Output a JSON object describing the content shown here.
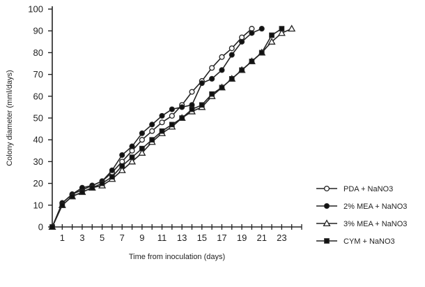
{
  "chart_data": {
    "type": "line",
    "xlabel": "Time from inoculation (days)",
    "ylabel": "Colony diameter (mml/days)",
    "xlim": [
      0,
      25
    ],
    "ylim": [
      0,
      100
    ],
    "x_ticks": [
      1,
      3,
      5,
      7,
      9,
      11,
      13,
      15,
      17,
      19,
      21,
      23
    ],
    "y_ticks": [
      0,
      10,
      20,
      30,
      40,
      50,
      60,
      70,
      80,
      90,
      100
    ],
    "grid": false,
    "legend_position": "right",
    "series": [
      {
        "name": "PDA + NaNO3",
        "marker": "open-circle",
        "x": [
          0,
          1,
          2,
          3,
          4,
          5,
          6,
          7,
          8,
          9,
          10,
          11,
          12,
          13,
          14,
          15,
          16,
          17,
          18,
          19,
          20
        ],
        "y": [
          0,
          11,
          15,
          17,
          19,
          21,
          25,
          30,
          35,
          40,
          44,
          48,
          51,
          56,
          62,
          67,
          73,
          78,
          82,
          87,
          91
        ]
      },
      {
        "name": "2% MEA + NaNO3",
        "marker": "filled-circle",
        "x": [
          0,
          1,
          2,
          3,
          4,
          5,
          6,
          7,
          8,
          9,
          10,
          11,
          12,
          13,
          14,
          15,
          16,
          17,
          18,
          19,
          20,
          21
        ],
        "y": [
          0,
          11,
          15,
          18,
          19,
          21,
          26,
          33,
          37,
          43,
          47,
          51,
          54,
          55,
          56,
          66,
          68,
          72,
          79,
          85,
          89,
          91
        ]
      },
      {
        "name": "3% MEA + NaNO3",
        "marker": "open-triangle",
        "x": [
          0,
          1,
          2,
          3,
          4,
          5,
          6,
          7,
          8,
          9,
          10,
          11,
          12,
          13,
          14,
          15,
          16,
          17,
          18,
          19,
          20,
          21,
          22,
          23,
          24
        ],
        "y": [
          0,
          10,
          14,
          16,
          18,
          19,
          22,
          26,
          30,
          34,
          39,
          43,
          46,
          50,
          53,
          55,
          60,
          64,
          68,
          72,
          76,
          80,
          85,
          89,
          91
        ]
      },
      {
        "name": "CYM + NaNO3",
        "marker": "filled-square",
        "x": [
          0,
          1,
          2,
          3,
          4,
          5,
          6,
          7,
          8,
          9,
          10,
          11,
          12,
          13,
          14,
          15,
          16,
          17,
          18,
          19,
          20,
          21,
          22,
          23
        ],
        "y": [
          0,
          10,
          14,
          16,
          18,
          20,
          23,
          28,
          32,
          36,
          40,
          44,
          47,
          50,
          54,
          56,
          61,
          64,
          68,
          72,
          76,
          80,
          88,
          91
        ]
      }
    ]
  },
  "colors": {
    "line": "#222222",
    "marker_fill_open": "#ffffff",
    "marker_fill_solid": "#111111"
  }
}
